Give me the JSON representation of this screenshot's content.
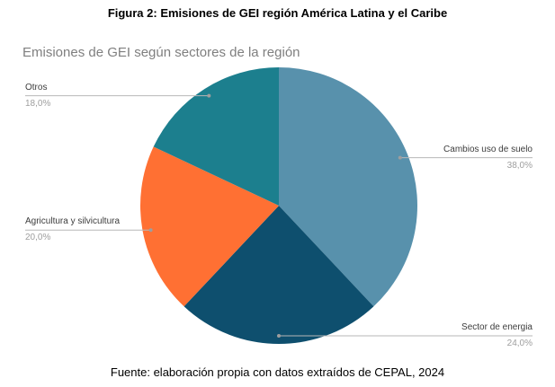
{
  "figure": {
    "title": "Figura 2: Emisiones de GEI región América Latina y el Caribe"
  },
  "chart_data": {
    "type": "pie",
    "title": "Emisiones de GEI según sectores de la región",
    "slices": [
      {
        "label": "Cambios uso de suelo",
        "value": 38.0,
        "pct_label": "38,0%",
        "color": "#5891ac",
        "label_side": "right"
      },
      {
        "label": "Sector de energia",
        "value": 24.0,
        "pct_label": "24,0%",
        "color": "#0e4f6e",
        "label_side": "right"
      },
      {
        "label": "Agricultura y silvicultura",
        "value": 20.0,
        "pct_label": "20,0%",
        "color": "#ff7033",
        "label_side": "left"
      },
      {
        "label": "Otros",
        "value": 18.0,
        "pct_label": "18,0%",
        "color": "#1c7f8e",
        "label_side": "left"
      }
    ],
    "start_angle_deg": 0,
    "direction": "clockwise",
    "labels_position": "outside",
    "legend": "none",
    "leader_line_color": "#b7b7b7",
    "leader_dot_color": "#9e9e9e"
  },
  "caption": {
    "text": "Fuente: elaboración propia con datos extraídos de CEPAL, 2024"
  }
}
